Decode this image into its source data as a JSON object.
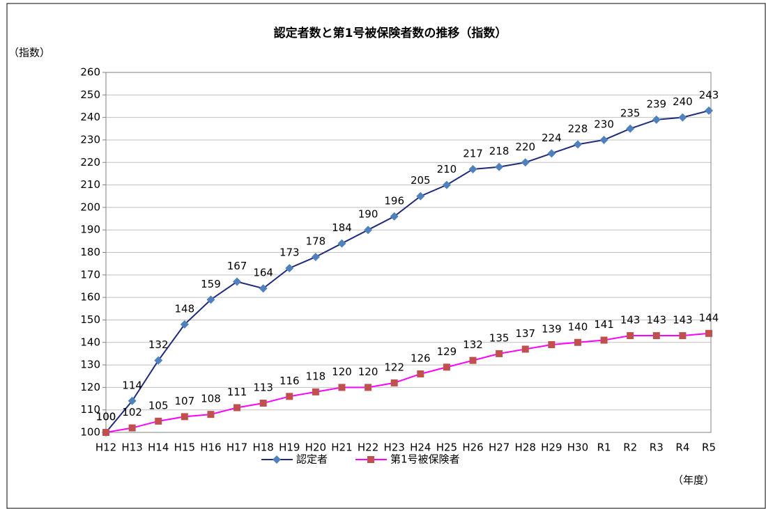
{
  "chart_data": {
    "type": "line",
    "title": "認定者数と第1号被保険者数の推移（指数）",
    "y_label": "（指数）",
    "x_label": "（年度）",
    "categories": [
      "H12",
      "H13",
      "H14",
      "H15",
      "H16",
      "H17",
      "H18",
      "H19",
      "H20",
      "H21",
      "H22",
      "H23",
      "H24",
      "H25",
      "H26",
      "H27",
      "H28",
      "H29",
      "H30",
      "R1",
      "R2",
      "R3",
      "R4",
      "R5"
    ],
    "series": [
      {
        "name": "認定者",
        "color": "#1f2a7a",
        "marker_color": "#4f81bd",
        "marker": "diamond",
        "values": [
          100,
          114,
          132,
          148,
          159,
          167,
          164,
          173,
          178,
          184,
          190,
          196,
          205,
          210,
          217,
          218,
          220,
          224,
          228,
          230,
          235,
          239,
          240,
          243
        ]
      },
      {
        "name": "第1号被保険者",
        "color": "#ff00ff",
        "marker_color": "#c0504d",
        "marker": "square",
        "values": [
          100,
          102,
          105,
          107,
          108,
          111,
          113,
          116,
          118,
          120,
          120,
          122,
          126,
          129,
          132,
          135,
          137,
          139,
          140,
          141,
          143,
          143,
          143,
          144
        ]
      }
    ],
    "ylim": [
      100,
      260
    ],
    "yticks": [
      100,
      110,
      120,
      130,
      140,
      150,
      160,
      170,
      180,
      190,
      200,
      210,
      220,
      230,
      240,
      250,
      260
    ],
    "grid": true
  }
}
